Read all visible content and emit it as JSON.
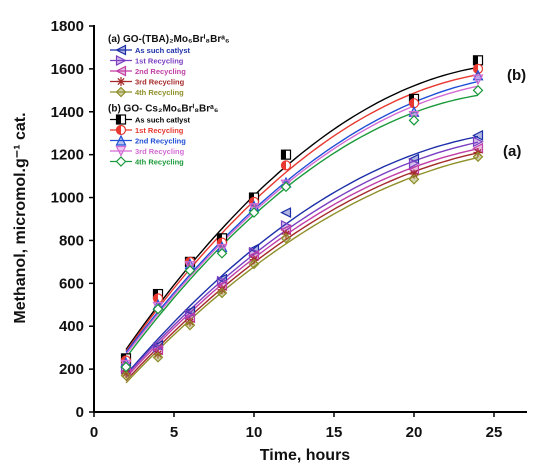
{
  "chart_data": {
    "type": "line",
    "xlabel": "Time, hours",
    "ylabel": "Methanol, micromol.g⁻¹ cat.",
    "xlim": [
      0,
      27
    ],
    "ylim": [
      0,
      1800
    ],
    "xticks": [
      0,
      5,
      10,
      15,
      20,
      25
    ],
    "yticks": [
      0,
      200,
      400,
      600,
      800,
      1000,
      1200,
      1400,
      1600,
      1800
    ],
    "x": [
      2,
      4,
      6,
      8,
      10,
      12,
      20,
      24
    ],
    "grid": false,
    "legend_position": "top-left",
    "set_labels": {
      "a": "(a)",
      "b": "(b)"
    },
    "groups": [
      {
        "id": "a",
        "title": "(a) GO-(TBA)₂Mo₆Brⁱ₈Brᵃ₆",
        "series": [
          {
            "name": "As such catlyst",
            "color": "#1c2fa8",
            "marker": "tri-left",
            "values": [
              210,
              310,
              470,
              620,
              760,
              930,
              1180,
              1290
            ]
          },
          {
            "name": "1st Recycling",
            "color": "#7a3fc2",
            "marker": "tri-right",
            "values": [
              200,
              300,
              455,
              610,
              745,
              870,
              1160,
              1260
            ]
          },
          {
            "name": "2nd Recycling",
            "color": "#c13fa6",
            "marker": "tri-left",
            "values": [
              190,
              290,
              440,
              590,
              730,
              850,
              1130,
              1230
            ]
          },
          {
            "name": "3rd Recycling",
            "color": "#a52a2a",
            "marker": "star",
            "values": [
              180,
              270,
              420,
              570,
              710,
              830,
              1110,
              1210
            ]
          },
          {
            "name": "4th Recycling",
            "color": "#8f8f2a",
            "marker": "diamond-half",
            "values": [
              170,
              255,
              405,
              555,
              690,
              810,
              1085,
              1190
            ]
          }
        ]
      },
      {
        "id": "b",
        "title": "(b) GO- Cs₂Mo₆Brⁱ₈Brᵃ₆",
        "series": [
          {
            "name": "As such catlyst",
            "color": "#000000",
            "marker": "square-half",
            "values": [
              250,
              550,
              700,
              810,
              1000,
              1200,
              1460,
              1640
            ]
          },
          {
            "name": "1st Recycling",
            "color": "#e8382f",
            "marker": "circle-half",
            "values": [
              240,
              530,
              700,
              790,
              980,
              1150,
              1440,
              1600
            ]
          },
          {
            "name": "2nd Recycling",
            "color": "#1f4fd6",
            "marker": "tri-up",
            "values": [
              230,
              500,
              690,
              770,
              960,
              1070,
              1400,
              1570
            ]
          },
          {
            "name": "3rd Recycling",
            "color": "#d36bd3",
            "marker": "tri-down",
            "values": [
              220,
              490,
              680,
              760,
              950,
              1060,
              1380,
              1550
            ]
          },
          {
            "name": "4th Recycling",
            "color": "#1a9a3a",
            "marker": "diamond",
            "values": [
              210,
              480,
              660,
              740,
              930,
              1050,
              1360,
              1500
            ]
          }
        ]
      }
    ]
  }
}
